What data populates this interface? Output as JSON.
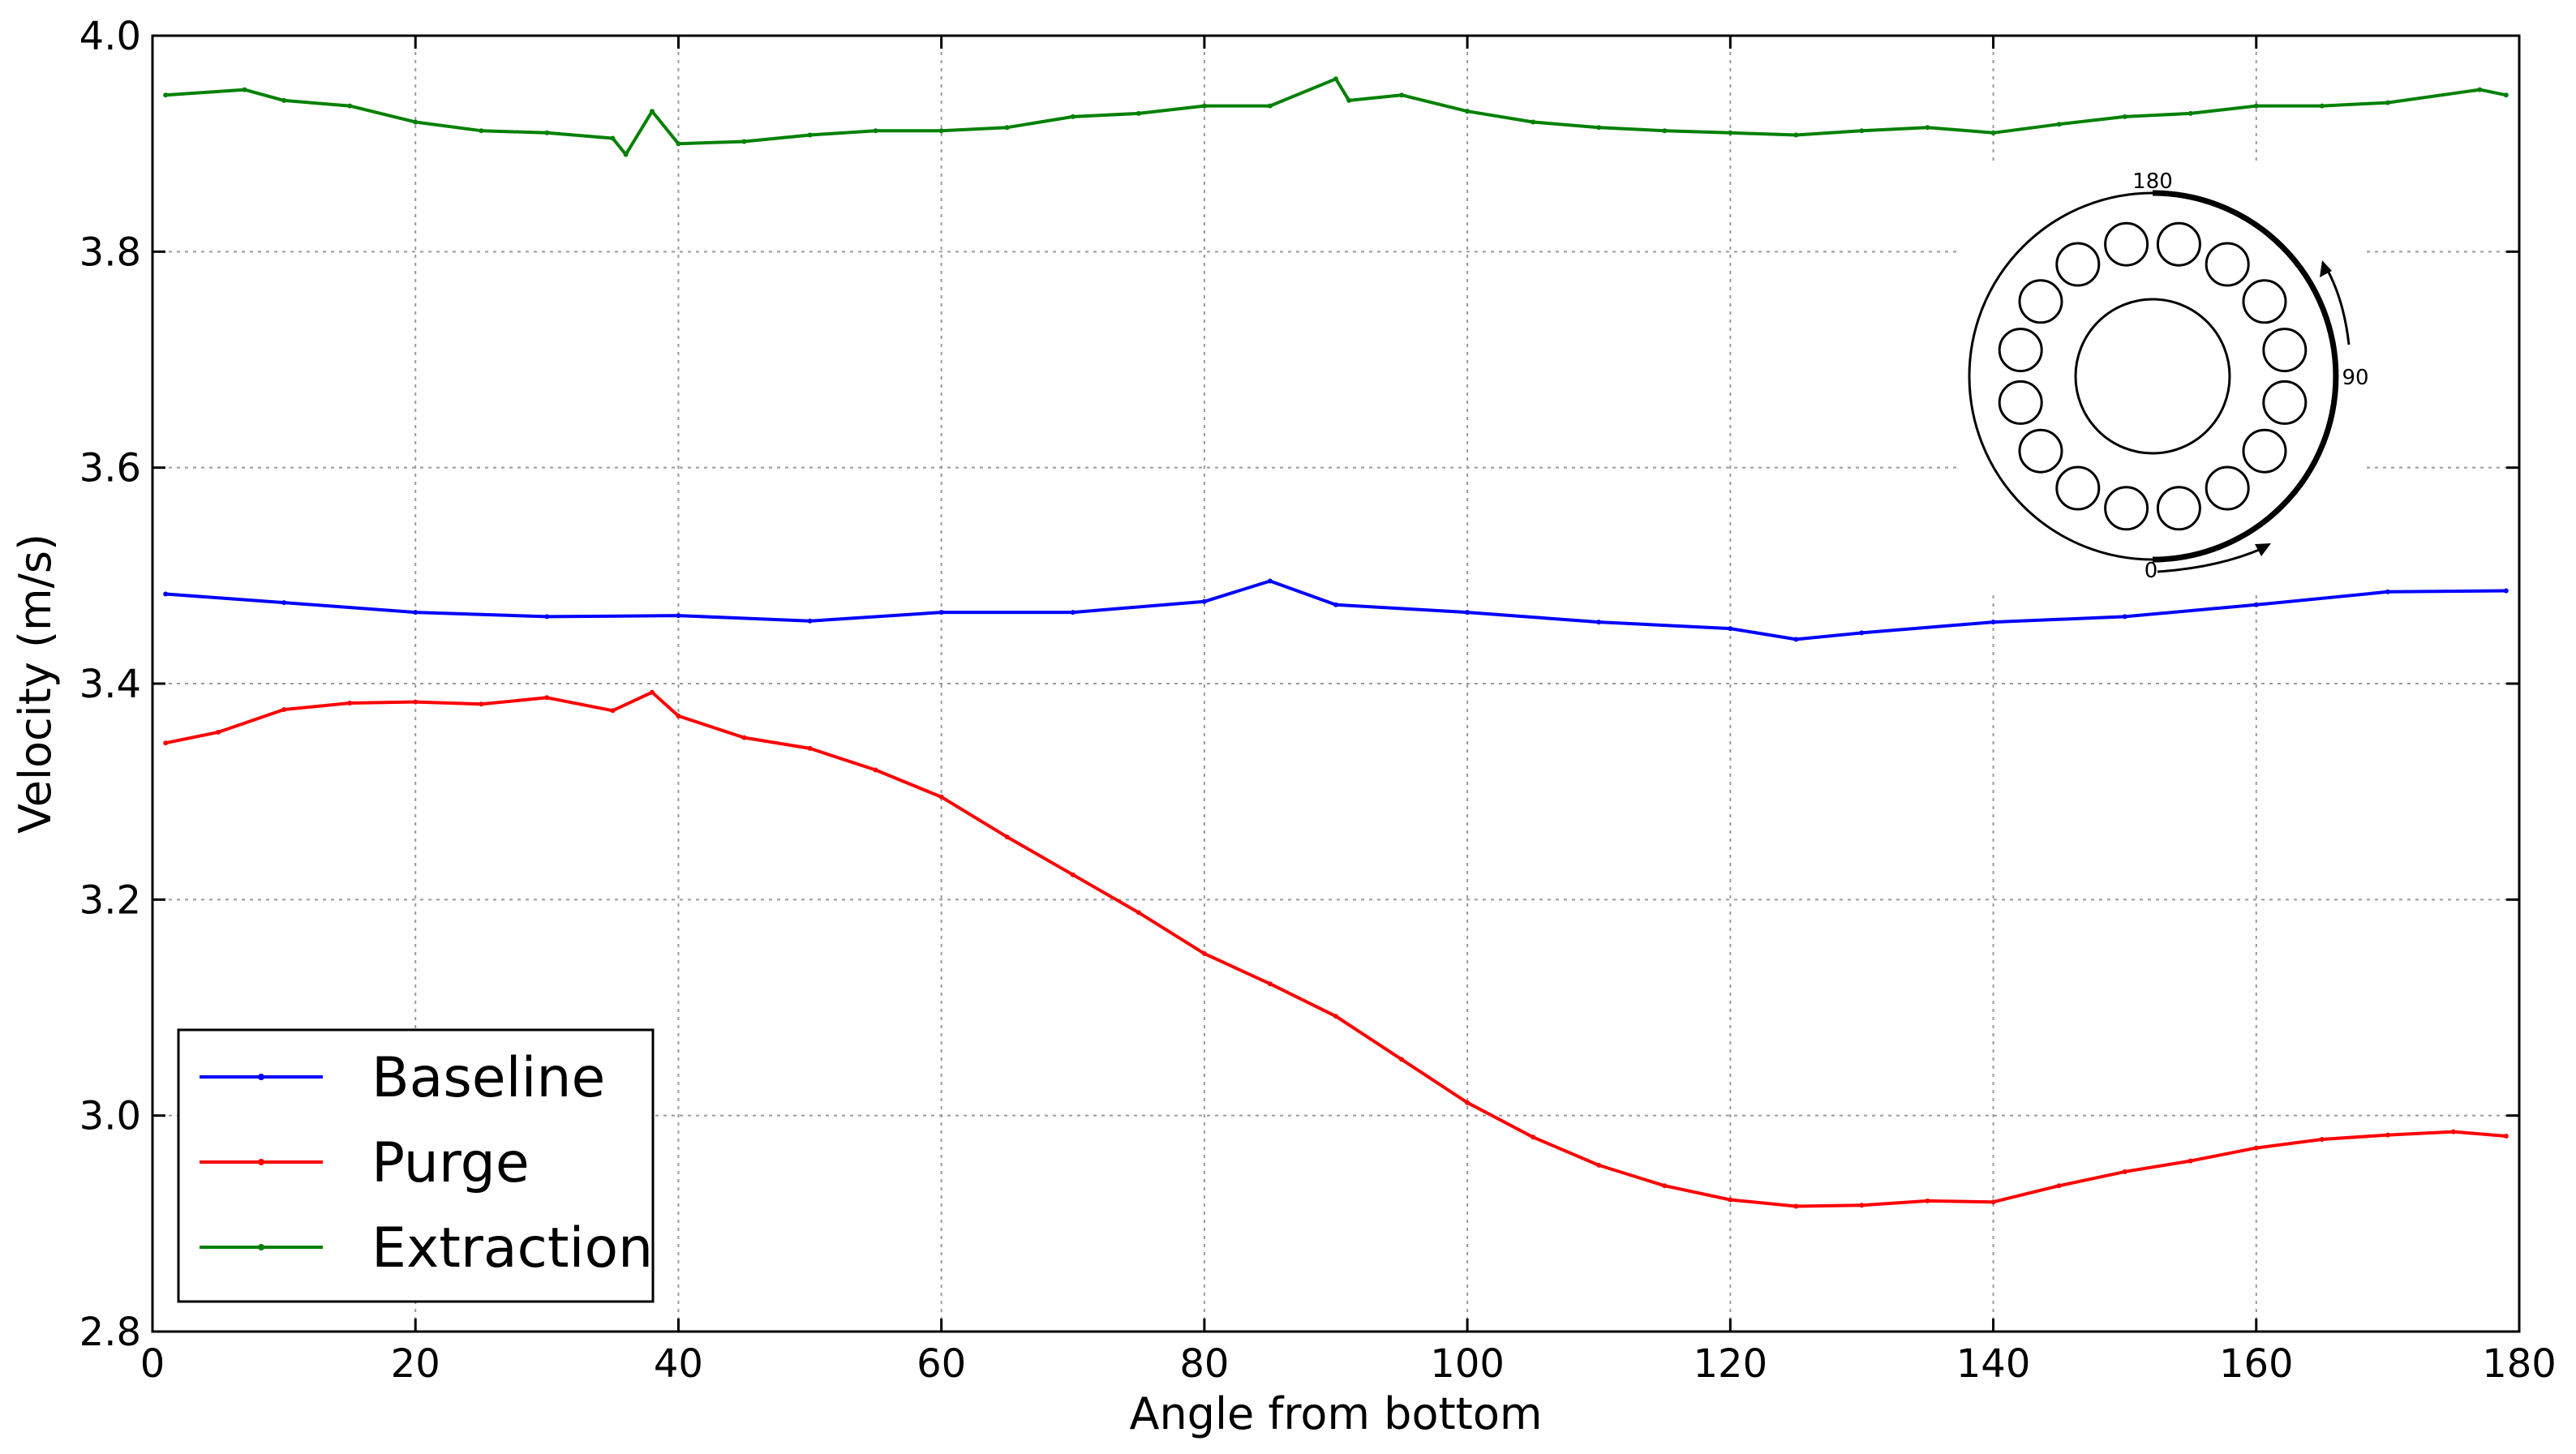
{
  "chart_data": {
    "type": "line",
    "title": "",
    "xlabel": "Angle from bottom",
    "ylabel": "Velocity (m/s)",
    "xlim": [
      0,
      180
    ],
    "ylim": [
      2.8,
      4.0
    ],
    "xticks": [
      0,
      20,
      40,
      60,
      80,
      100,
      120,
      140,
      160,
      180
    ],
    "xtick_labels": [
      "0",
      "20",
      "40",
      "60",
      "80",
      "100",
      "120",
      "140",
      "160",
      "180"
    ],
    "yticks": [
      2.8,
      3.0,
      3.2,
      3.4,
      3.6,
      3.8,
      4.0
    ],
    "ytick_labels": [
      "2.8",
      "3.0",
      "3.2",
      "3.4",
      "3.6",
      "3.8",
      "4.0"
    ],
    "grid": true,
    "legend_position": "lower-left",
    "series": [
      {
        "name": "Baseline",
        "color": "#0000ff",
        "x": [
          1,
          10,
          20,
          30,
          40,
          50,
          60,
          70,
          80,
          85,
          90,
          100,
          110,
          120,
          125,
          130,
          140,
          150,
          160,
          170,
          179
        ],
        "y": [
          3.483,
          3.475,
          3.466,
          3.462,
          3.463,
          3.458,
          3.466,
          3.466,
          3.476,
          3.495,
          3.473,
          3.466,
          3.457,
          3.451,
          3.441,
          3.447,
          3.457,
          3.462,
          3.473,
          3.485,
          3.486
        ]
      },
      {
        "name": "Purge",
        "color": "#ff0000",
        "x": [
          1,
          5,
          10,
          15,
          20,
          25,
          30,
          35,
          38,
          40,
          45,
          50,
          55,
          60,
          65,
          70,
          75,
          80,
          85,
          90,
          95,
          100,
          105,
          110,
          115,
          120,
          125,
          130,
          135,
          140,
          145,
          150,
          155,
          160,
          165,
          170,
          175,
          179
        ],
        "y": [
          3.345,
          3.355,
          3.376,
          3.382,
          3.383,
          3.381,
          3.387,
          3.375,
          3.392,
          3.37,
          3.35,
          3.34,
          3.32,
          3.295,
          3.258,
          3.223,
          3.188,
          3.15,
          3.122,
          3.092,
          3.052,
          3.012,
          2.98,
          2.954,
          2.935,
          2.922,
          2.916,
          2.917,
          2.921,
          2.92,
          2.935,
          2.948,
          2.958,
          2.97,
          2.978,
          2.982,
          2.985,
          2.981
        ]
      },
      {
        "name": "Extraction",
        "color": "#008000",
        "x": [
          1,
          7,
          10,
          15,
          20,
          25,
          30,
          35,
          36,
          38,
          40,
          45,
          50,
          55,
          60,
          65,
          70,
          75,
          80,
          85,
          90,
          91,
          95,
          100,
          105,
          110,
          115,
          120,
          125,
          130,
          135,
          140,
          145,
          150,
          155,
          160,
          165,
          170,
          177,
          179
        ],
        "y": [
          3.945,
          3.95,
          3.94,
          3.935,
          3.92,
          3.912,
          3.91,
          3.905,
          3.89,
          3.93,
          3.9,
          3.902,
          3.908,
          3.912,
          3.912,
          3.915,
          3.925,
          3.928,
          3.935,
          3.935,
          3.96,
          3.94,
          3.945,
          3.93,
          3.92,
          3.915,
          3.912,
          3.91,
          3.908,
          3.912,
          3.915,
          3.91,
          3.918,
          3.925,
          3.928,
          3.935,
          3.935,
          3.938,
          3.95,
          3.945
        ]
      }
    ],
    "inset": {
      "labels": [
        "180",
        "90",
        "0"
      ]
    }
  }
}
